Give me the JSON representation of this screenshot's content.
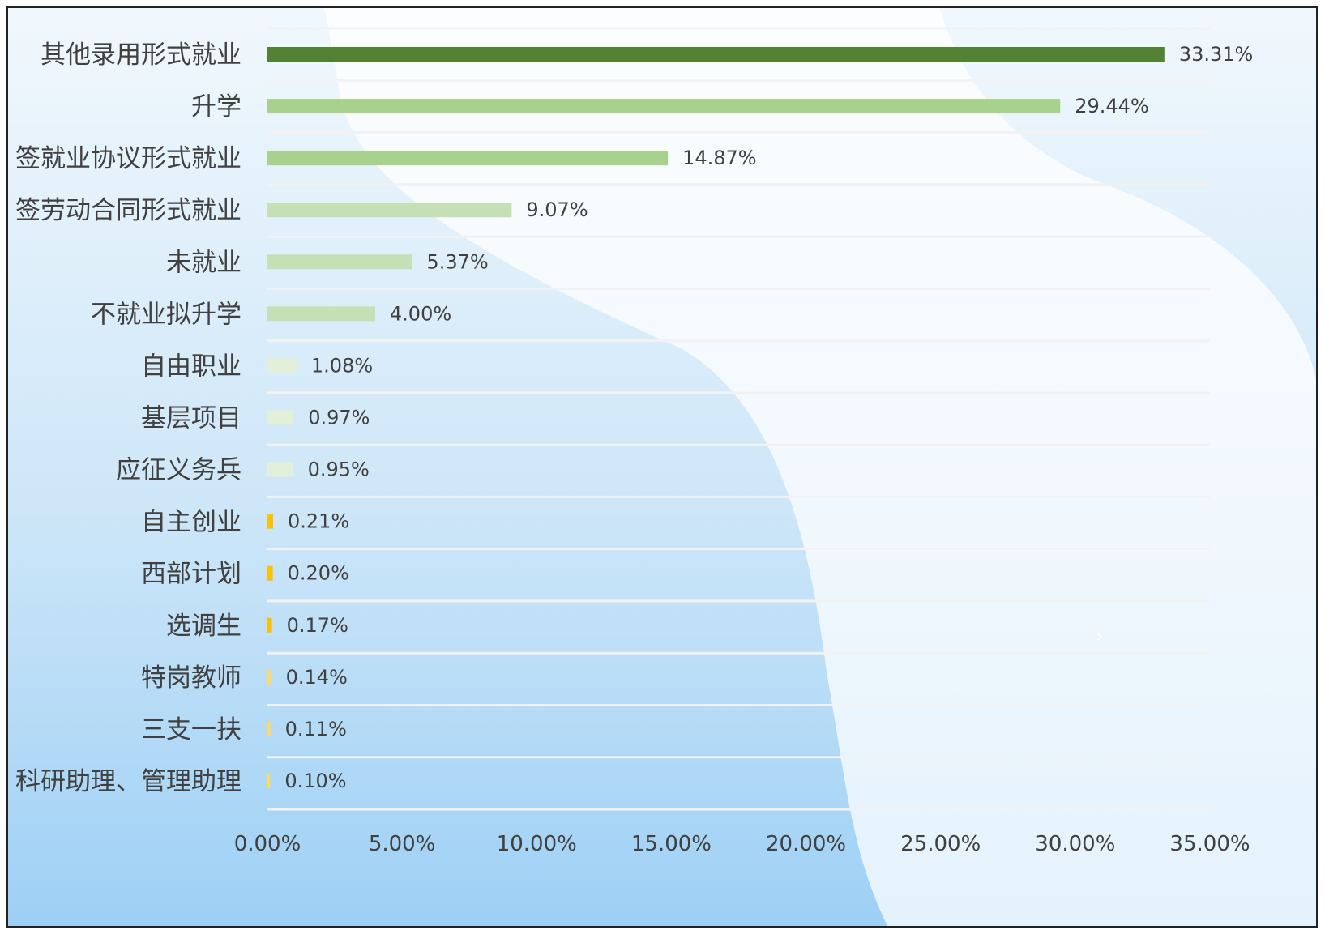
{
  "chart_data": {
    "type": "bar",
    "orientation": "horizontal",
    "title": "",
    "xlabel": "",
    "ylabel": "",
    "categories": [
      "其他录用形式就业",
      "升学",
      "签就业协议形式就业",
      "签劳动合同形式就业",
      "未就业",
      "不就业拟升学",
      "自由职业",
      "基层项目",
      "应征义务兵",
      "自主创业",
      "西部计划",
      "选调生",
      "特岗教师",
      "三支一扶",
      "科研助理、管理助理"
    ],
    "values": [
      33.31,
      29.44,
      14.87,
      9.07,
      5.37,
      4.0,
      1.08,
      0.97,
      0.95,
      0.21,
      0.2,
      0.17,
      0.14,
      0.11,
      0.1
    ],
    "data_labels": [
      "33.31%",
      "29.44%",
      "14.87%",
      "9.07%",
      "5.37%",
      "4.00%",
      "1.08%",
      "0.97%",
      "0.95%",
      "0.21%",
      "0.20%",
      "0.17%",
      "0.14%",
      "0.11%",
      "0.10%"
    ],
    "bar_colors": [
      "#548235",
      "#a9d18e",
      "#a9d18e",
      "#c5e0b4",
      "#c5e0b4",
      "#c5e0b4",
      "#e2f0d9",
      "#e2f0d9",
      "#e2f0d9",
      "#ffc000",
      "#ffc000",
      "#ffc000",
      "#ffd966",
      "#ffd966",
      "#ffd966"
    ],
    "x_ticks": [
      0,
      5,
      10,
      15,
      20,
      25,
      30,
      35
    ],
    "x_tick_labels": [
      "0.00%",
      "5.00%",
      "10.00%",
      "15.00%",
      "20.00%",
      "25.00%",
      "30.00%",
      "35.00%"
    ],
    "xlim": [
      0,
      35
    ],
    "grid": true,
    "legend": "none",
    "colors": {
      "text": "#404040",
      "gridline": "#f2f2f2",
      "bg_light": "#f1f8fd",
      "bg_mid": "#cde6f8",
      "bg_dark": "#9dd0f5",
      "wave": "#ffffff"
    }
  }
}
